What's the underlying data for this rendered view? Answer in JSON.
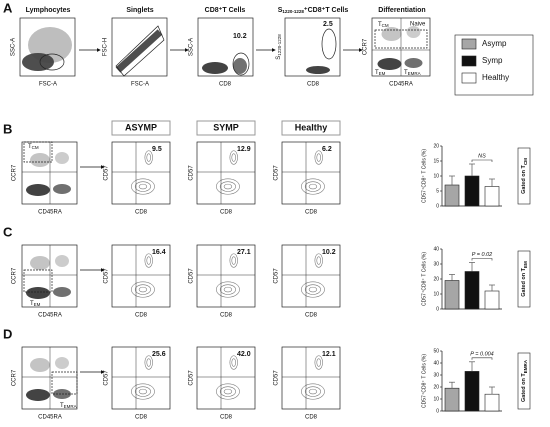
{
  "panel_a": {
    "label": "A",
    "plots": [
      {
        "title": "Lymphocytes",
        "x_label": "FSC-A",
        "y_label": "SSC-A"
      },
      {
        "title": "Singlets",
        "x_label": "FSC-A",
        "y_label": "FSC-H"
      },
      {
        "title": "CD8⁺T Cells",
        "x_label": "CD8",
        "y_label": "SSC-A",
        "gate_value": "10.2"
      },
      {
        "title_main": "S",
        "title_sub": "1220-1228",
        "title_rest": "⁺CD8⁺T Cells",
        "x_label": "CD8",
        "y_label_main": "S",
        "y_label_sub": "1220-1228",
        "gate_value": "2.5"
      },
      {
        "title": "Differentiation",
        "x_label": "CD45RA",
        "y_label": "CCR7",
        "quadrants": [
          {
            "main": "T",
            "sub": "CM"
          },
          {
            "main": "Naive"
          },
          {
            "main": "T",
            "sub": "EM"
          },
          {
            "main": "T",
            "sub": "EMRA"
          }
        ]
      }
    ]
  },
  "legend": [
    {
      "name": "Asymp",
      "color": "#a6a6a6"
    },
    {
      "name": "Symp",
      "color": "#111111"
    },
    {
      "name": "Healthy",
      "color": "#ffffff"
    }
  ],
  "columns": [
    "ASYMP",
    "SYMP",
    "Healthy"
  ],
  "rows": [
    {
      "label": "B",
      "x_label": "CD45RA",
      "y_label": "CCR7",
      "gate": {
        "main": "T",
        "sub": "CM"
      },
      "plots": [
        {
          "x_label": "CD8",
          "y_label": "CD57",
          "value": "9.5"
        },
        {
          "x_label": "CD8",
          "y_label": "CD57",
          "value": "12.9"
        },
        {
          "x_label": "CD8",
          "y_label": "CD57",
          "value": "6.2"
        }
      ]
    },
    {
      "label": "C",
      "x_label": "CD45RA",
      "y_label": "CCR7",
      "gate": {
        "main": "T",
        "sub": "EM"
      },
      "plots": [
        {
          "x_label": "CD8",
          "y_label": "CD57",
          "value": "16.4"
        },
        {
          "x_label": "CD8",
          "y_label": "CD57",
          "value": "27.1"
        },
        {
          "x_label": "CD8",
          "y_label": "CD57",
          "value": "10.2"
        }
      ]
    },
    {
      "label": "D",
      "x_label": "CD45RA",
      "y_label": "CCR7",
      "gate": {
        "main": "T",
        "sub": "EMRA"
      },
      "plots": [
        {
          "x_label": "CD8",
          "y_label": "CD57",
          "value": "25.6"
        },
        {
          "x_label": "CD8",
          "y_label": "CD57",
          "value": "42.0"
        },
        {
          "x_label": "CD8",
          "y_label": "CD57",
          "value": "12.1"
        }
      ]
    }
  ],
  "chart_data": [
    {
      "type": "bar",
      "y_label": "CD57⁺CD8⁺ T Cells (%)",
      "values": [
        7,
        10,
        6.5
      ],
      "errors": [
        3,
        4,
        2.5
      ],
      "colors": [
        "#a6a6a6",
        "#111111",
        "#ffffff"
      ],
      "ylim": [
        0,
        20
      ],
      "yticks": [
        0,
        5,
        10,
        15,
        20
      ],
      "annotation": "NS",
      "side_label": {
        "text": "Gated on T",
        "sub": "CM"
      }
    },
    {
      "type": "bar",
      "y_label": "CD57⁺CD8⁺ T Cells (%)",
      "values": [
        19,
        25,
        12
      ],
      "errors": [
        4,
        6,
        4
      ],
      "colors": [
        "#a6a6a6",
        "#111111",
        "#ffffff"
      ],
      "ylim": [
        0,
        40
      ],
      "yticks": [
        0,
        10,
        20,
        30,
        40
      ],
      "annotation": "P = 0.02",
      "side_label": {
        "text": "Gated on T",
        "sub": "EM"
      }
    },
    {
      "type": "bar",
      "y_label": "CD57⁺CD8⁺ T Cells (%)",
      "values": [
        19,
        33,
        14
      ],
      "errors": [
        5,
        8,
        6
      ],
      "colors": [
        "#a6a6a6",
        "#111111",
        "#ffffff"
      ],
      "ylim": [
        0,
        50
      ],
      "yticks": [
        0,
        10,
        20,
        30,
        40,
        50
      ],
      "annotation": "P = 0.004",
      "side_label": {
        "text": "Gated on T",
        "sub": "EMRA"
      }
    }
  ]
}
